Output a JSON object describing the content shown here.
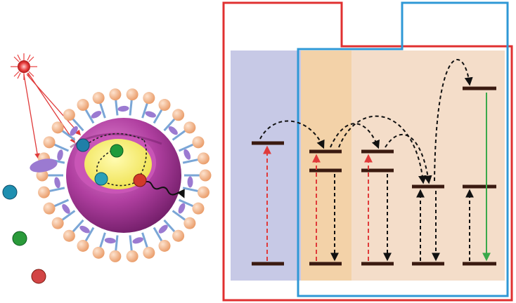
{
  "colors": {
    "red_frame": "#e03030",
    "blue_frame": "#2f98d6",
    "panel_blue": "#c7c9e6",
    "panel_orange": "#f3d2a8",
    "panel_beige": "#f4ddc9",
    "level": "#3a1a10",
    "excite_arrow": "#e03a3a",
    "transfer_arrow": "#111111",
    "emission_arrow": "#3aa84a",
    "shell_magenta": "#a0308f",
    "shell_inner": "#d65fc2",
    "core_yellow": "#f5ef6a",
    "lipid_head": "#f6b98c",
    "lipid_tail": "#7aa6d6",
    "ligand": "#9b7ad1",
    "light_source": "#e84040"
  },
  "icons": [
    "light-source-icon",
    "nanoparticle-icon",
    "dopant-ion-icon",
    "free-ion-icon"
  ],
  "dopant_ions": [
    {
      "name": "dopant-ion-1",
      "color": "#1f7fa8"
    },
    {
      "name": "dopant-ion-2",
      "color": "#1f9a3a"
    },
    {
      "name": "dopant-ion-3",
      "color": "#2aa0b8"
    },
    {
      "name": "dopant-ion-4",
      "color": "#d23a2a"
    }
  ],
  "free_ions": [
    {
      "name": "free-ion-blue",
      "color": "#1f8fb0"
    },
    {
      "name": "free-ion-green",
      "color": "#2a9a3a"
    },
    {
      "name": "free-ion-red",
      "color": "#d24545"
    }
  ]
}
